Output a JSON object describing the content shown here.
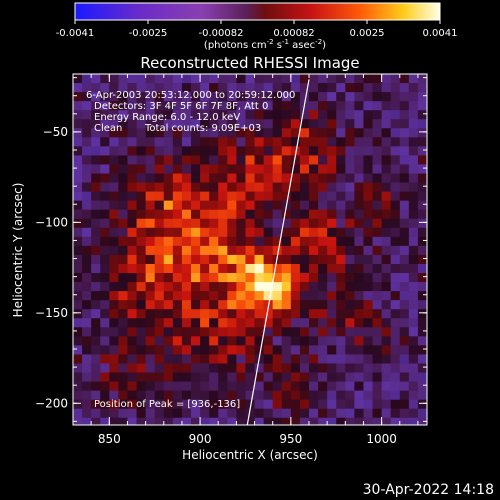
{
  "colorbar": {
    "ticks": [
      "-0.0041",
      "-0.0025",
      "-0.00082",
      "0.00082",
      "0.0025",
      "0.0041"
    ],
    "unit_line1": "(photons cm",
    "unit_exp1": "-2",
    "unit_line2": " s",
    "unit_exp2": "-1",
    "unit_line3": " asec",
    "unit_exp3": "-2",
    "unit_close": ")"
  },
  "chart_data": {
    "type": "heatmap",
    "title": "Reconstructed RHESSI Image",
    "xlabel": "Heliocentric X (arcsec)",
    "ylabel": "Heliocentric Y (arcsec)",
    "xlim": [
      830,
      1025
    ],
    "ylim": [
      -212,
      -18
    ],
    "xticks": [
      850,
      900,
      950,
      1000
    ],
    "yticks": [
      -50,
      -100,
      -150,
      -200
    ],
    "value_range": [
      -0.0041,
      0.0041
    ],
    "value_unit": "photons cm^-2 s^-1 asec^-2",
    "colormap": "purple-blue to red to yellow-white",
    "peak_position": [
      936,
      -136
    ],
    "limb_line": [
      [
        960,
        -21
      ],
      [
        926,
        -212
      ]
    ],
    "annotations": {
      "time": "6-Apr-2003 20:53:12.000 to 20:59:12.000",
      "detectors": "Detectors: 3F 4F 5F 6F 7F 8F, Att 0",
      "energy": "Energy Range: 6.0 - 12.0 keV",
      "algorithm": "Clean",
      "counts": "Total counts: 9.09E+03",
      "peak_label": "Position of Peak = [936,-136]"
    }
  },
  "footer": {
    "date": "30-Apr-2022 14:18"
  }
}
